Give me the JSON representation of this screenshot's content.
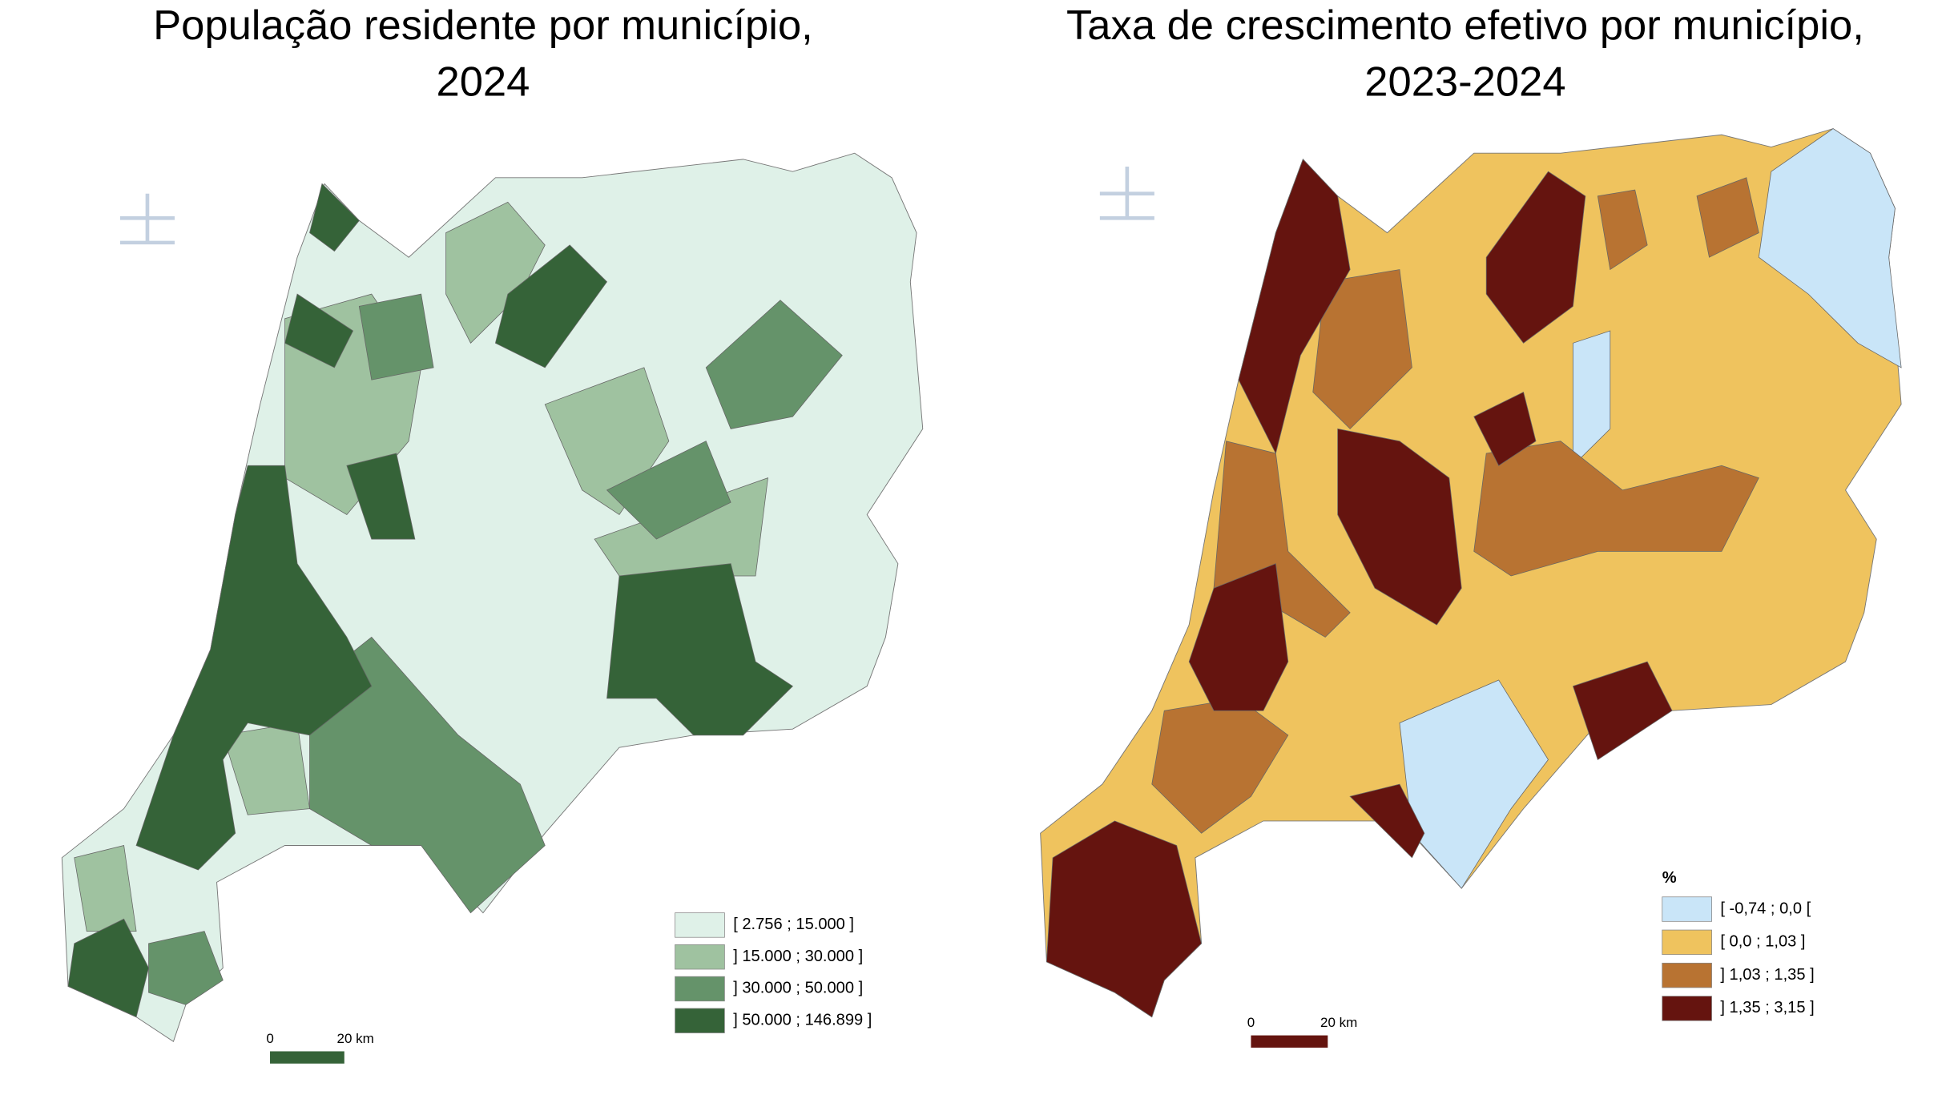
{
  "maps": [
    {
      "title_lines": [
        "População residente por município,",
        "2024"
      ],
      "legend": {
        "classes": [
          {
            "label": "[ 2.756 ; 15.000 ]",
            "color": "#dff1e8"
          },
          {
            "label": "] 15.000 ; 30.000 ]",
            "color": "#9fc2a0"
          },
          {
            "label": "] 30.000 ; 50.000 ]",
            "color": "#65936a"
          },
          {
            "label": "] 50.000 ; 146.899 ]",
            "color": "#356338"
          }
        ]
      },
      "scale_bar": {
        "labels": [
          "0",
          "20 km"
        ],
        "color": "#356338"
      }
    },
    {
      "title_lines": [
        "Taxa de crescimento efetivo por município,",
        "2023-2024"
      ],
      "legend": {
        "title": "%",
        "classes": [
          {
            "label": "[ -0,74 ; 0,0 [",
            "color": "#c9e5f8"
          },
          {
            "label": "[ 0,0 ; 1,03 ]",
            "color": "#efc35e"
          },
          {
            "label": "] 1,03 ; 1,35 ]",
            "color": "#b87332"
          },
          {
            "label": "] 1,35 ; 3,15 ]",
            "color": "#65140f"
          }
        ]
      },
      "scale_bar": {
        "labels": [
          "0",
          "20 km"
        ],
        "color": "#65140f"
      }
    }
  ]
}
